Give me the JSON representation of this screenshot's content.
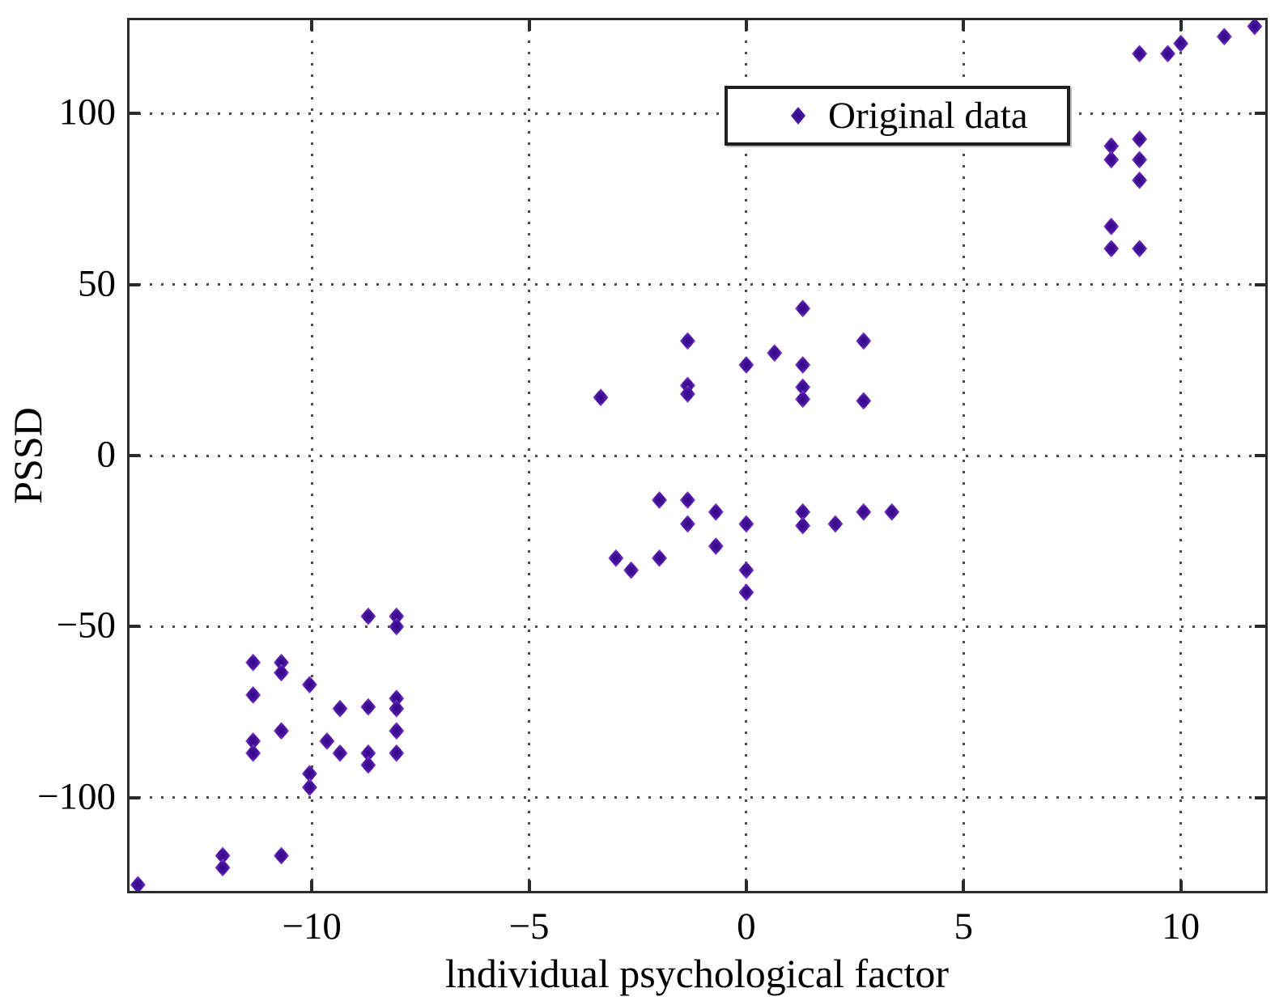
{
  "chart_data": {
    "type": "scatter",
    "title": "",
    "xlabel": "lndividual psychological factor",
    "ylabel": "PSSD",
    "legend": {
      "label": "Original data",
      "marker": "diamond",
      "position": "upper center-right"
    },
    "grid": "dotted",
    "xlim": [
      -14.25,
      12
    ],
    "ylim": [
      -128,
      128
    ],
    "xticks": [
      {
        "v": -10,
        "label": "−10"
      },
      {
        "v": -5,
        "label": "−5"
      },
      {
        "v": 0,
        "label": "0"
      },
      {
        "v": 5,
        "label": "5"
      },
      {
        "v": 10,
        "label": "10"
      }
    ],
    "yticks": [
      {
        "v": 100,
        "label": "100"
      },
      {
        "v": 50,
        "label": "50"
      },
      {
        "v": 0,
        "label": "0"
      },
      {
        "v": -50,
        "label": "−50"
      },
      {
        "v": -100,
        "label": "−100"
      }
    ],
    "series": [
      {
        "name": "Original data",
        "points": [
          [
            -14.0,
            -125.5
          ],
          [
            -12.05,
            -117
          ],
          [
            -12.05,
            -120.5
          ],
          [
            -10.7,
            -117
          ],
          [
            -11.35,
            -60.5
          ],
          [
            -10.7,
            -60.5
          ],
          [
            -10.7,
            -63.5
          ],
          [
            -10.05,
            -67
          ],
          [
            -11.35,
            -70
          ],
          [
            -9.35,
            -74
          ],
          [
            -8.7,
            -73.5
          ],
          [
            -8.05,
            -71
          ],
          [
            -8.05,
            -74
          ],
          [
            -8.05,
            -47
          ],
          [
            -8.05,
            -50
          ],
          [
            -8.7,
            -47
          ],
          [
            -8.05,
            -80.5
          ],
          [
            -8.05,
            -87
          ],
          [
            -8.7,
            -87
          ],
          [
            -8.7,
            -90.5
          ],
          [
            -9.65,
            -83.5
          ],
          [
            -9.35,
            -87
          ],
          [
            -10.7,
            -80.5
          ],
          [
            -11.35,
            -83.5
          ],
          [
            -11.35,
            -87
          ],
          [
            -10.05,
            -93
          ],
          [
            -10.05,
            -97
          ],
          [
            1.3,
            43
          ],
          [
            -1.35,
            33.5
          ],
          [
            2.7,
            33.5
          ],
          [
            0.65,
            30
          ],
          [
            0,
            26.5
          ],
          [
            1.3,
            26.5
          ],
          [
            -1.35,
            20.5
          ],
          [
            -1.35,
            18
          ],
          [
            1.3,
            20
          ],
          [
            1.3,
            16.5
          ],
          [
            2.7,
            16
          ],
          [
            -3.35,
            17
          ],
          [
            -2.0,
            -13
          ],
          [
            -1.35,
            -13
          ],
          [
            -0.7,
            -16.5
          ],
          [
            -1.35,
            -20
          ],
          [
            0,
            -20
          ],
          [
            1.3,
            -16.5
          ],
          [
            1.3,
            -20.5
          ],
          [
            2.05,
            -20
          ],
          [
            2.7,
            -16.5
          ],
          [
            3.35,
            -16.5
          ],
          [
            -0.7,
            -26.5
          ],
          [
            -3.0,
            -30
          ],
          [
            -2.65,
            -33.5
          ],
          [
            -2.0,
            -30
          ],
          [
            0,
            -33.5
          ],
          [
            0,
            -40
          ],
          [
            11.7,
            125.5
          ],
          [
            11.0,
            122.5
          ],
          [
            10.0,
            120.5
          ],
          [
            9.7,
            117.5
          ],
          [
            9.05,
            117.5
          ],
          [
            9.05,
            92.5
          ],
          [
            8.4,
            90.5
          ],
          [
            8.4,
            86.5
          ],
          [
            9.05,
            86.5
          ],
          [
            9.05,
            80.5
          ],
          [
            8.4,
            67
          ],
          [
            8.4,
            60.5
          ],
          [
            9.05,
            60.5
          ]
        ]
      }
    ]
  },
  "colors": {
    "marker_core": "#2e0884",
    "marker_mid": "#4c12a1",
    "marker_edge": "#9465d8",
    "grid_dots": "#4a4a4a",
    "axis_frame": "#2b2b2b",
    "text": "#000000",
    "background": "#ffffff",
    "legend_border": "#1f1f1f"
  }
}
